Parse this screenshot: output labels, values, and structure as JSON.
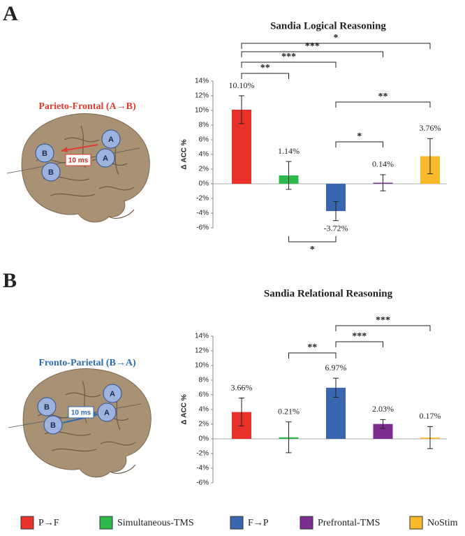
{
  "panels": [
    {
      "label": "A",
      "region_title": "Parieto-Frontal (A→B)",
      "delay": "10 ms",
      "nodes": [
        "B",
        "B",
        "A",
        "A"
      ]
    },
    {
      "label": "B",
      "region_title": "Fronto-Parietal (B→A)",
      "delay": "10 ms",
      "nodes": [
        "B",
        "B",
        "A",
        "A"
      ]
    }
  ],
  "legend": [
    {
      "name": "P→F",
      "color": "#e8312a"
    },
    {
      "name": "Simultaneous-TMS",
      "color": "#2db84b"
    },
    {
      "name": "F→P",
      "color": "#3a66b0"
    },
    {
      "name": "Prefrontal-TMS",
      "color": "#7a2d8f"
    },
    {
      "name": "NoStim",
      "color": "#f9b92a"
    }
  ],
  "chart_data": [
    {
      "type": "bar",
      "title": "Sandia Logical Reasoning",
      "y_label": "Δ ACC %",
      "values": [
        10.1,
        1.14,
        -3.72,
        0.14,
        3.76
      ],
      "errors": [
        1.9,
        1.9,
        1.3,
        1.1,
        2.4
      ],
      "value_labels": [
        "10.10%",
        "1.14%",
        "-3.72%",
        "0.14%",
        "3.76%"
      ],
      "ylim": [
        -6,
        14
      ],
      "yticks": [
        {
          "value": -6,
          "label": "-6%"
        },
        {
          "value": -4,
          "label": "-4%"
        },
        {
          "value": -2,
          "label": "-2%"
        },
        {
          "value": 0,
          "label": "0%"
        },
        {
          "value": 2,
          "label": "2%"
        },
        {
          "value": 4,
          "label": "4%"
        },
        {
          "value": 6,
          "label": "6%"
        },
        {
          "value": 8,
          "label": "8%"
        },
        {
          "value": 10,
          "label": "10%"
        },
        {
          "value": 12,
          "label": "12%"
        },
        {
          "value": 14,
          "label": "14%"
        }
      ],
      "brackets": [
        {
          "from": 0,
          "to": 4,
          "label": "*"
        },
        {
          "from": 0,
          "to": 3,
          "label": "***"
        },
        {
          "from": 0,
          "to": 2,
          "label": "***"
        },
        {
          "from": 0,
          "to": 1,
          "label": "**"
        },
        {
          "from": 2,
          "to": 4,
          "label": "**"
        },
        {
          "from": 2,
          "to": 3,
          "label": "*"
        },
        {
          "from": 1,
          "to": 2,
          "label": "*"
        }
      ]
    },
    {
      "type": "bar",
      "title": "Sandia Relational Reasoning",
      "y_label": "Δ ACC %",
      "values": [
        3.66,
        0.21,
        6.97,
        2.03,
        0.17
      ],
      "errors": [
        1.9,
        2.1,
        1.3,
        0.6,
        1.5
      ],
      "value_labels": [
        "3.66%",
        "0.21%",
        "6.97%",
        "2.03%",
        "0.17%"
      ],
      "ylim": [
        -6,
        14
      ],
      "yticks": [
        {
          "value": -6,
          "label": "-6%"
        },
        {
          "value": -4,
          "label": "-4%"
        },
        {
          "value": -2,
          "label": "-2%"
        },
        {
          "value": 0,
          "label": "0%"
        },
        {
          "value": 2,
          "label": "2%"
        },
        {
          "value": 4,
          "label": "4%"
        },
        {
          "value": 6,
          "label": "6%"
        },
        {
          "value": 8,
          "label": "8%"
        },
        {
          "value": 10,
          "label": "10%"
        },
        {
          "value": 12,
          "label": "12%"
        },
        {
          "value": 14,
          "label": "14%"
        }
      ],
      "brackets": [
        {
          "from": 2,
          "to": 4,
          "label": "***"
        },
        {
          "from": 1,
          "to": 2,
          "label": "**"
        },
        {
          "from": 2,
          "to": 3,
          "label": "***"
        }
      ]
    }
  ]
}
